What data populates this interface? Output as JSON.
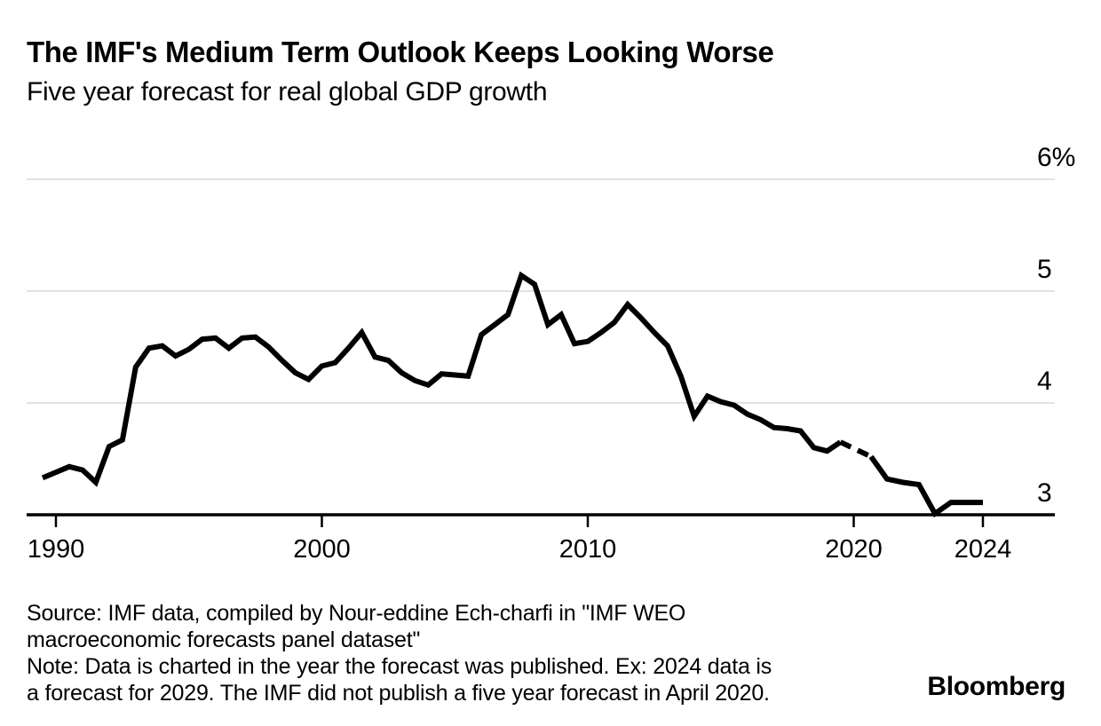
{
  "header": {
    "title": "The IMF's Medium Term Outlook Keeps Looking Worse",
    "subtitle": "Five year forecast for real global GDP growth"
  },
  "footer": {
    "source_lines": [
      "Source: IMF data, compiled by Nour-eddine Ech-charfi in \"IMF WEO",
      "macroeconomic forecasts panel dataset\""
    ],
    "note_lines": [
      "Note: Data is charted in the year the forecast was published. Ex: 2024 data is",
      "a forecast for 2029. The IMF did not publish a five year forecast in April 2020."
    ],
    "brand": "Bloomberg"
  },
  "colors": {
    "line": "#000000",
    "gridline": "#d9d9d9",
    "axis": "#000000",
    "background": "#ffffff",
    "text": "#000000"
  },
  "chart_data": {
    "type": "line",
    "title": "The IMF's Medium Term Outlook Keeps Looking Worse",
    "subtitle": "Five year forecast for real global GDP growth",
    "unit": "percent",
    "point_convention": "decimal years: .0 = April WEO publication, .5 = October WEO publication; value = five-year-ahead real global GDP growth forecast in %",
    "grid": "horizontal only",
    "legend": "none",
    "y_axis": {
      "side": "right",
      "baseline_value": 3,
      "top_value": 6.15,
      "ticks": [
        {
          "value": 6,
          "label": "6%"
        },
        {
          "value": 5,
          "label": "5"
        },
        {
          "value": 4,
          "label": "4"
        },
        {
          "value": 3,
          "label": "3"
        }
      ]
    },
    "x_axis": {
      "ticks": [
        {
          "value": 1990,
          "label": "1990"
        },
        {
          "value": 2000,
          "label": "2000"
        },
        {
          "value": 2010,
          "label": "2010"
        },
        {
          "value": 2020,
          "label": "2020"
        },
        {
          "value": 2024,
          "label": "2024"
        }
      ]
    },
    "series": [
      {
        "name": "Five year forecast for real global GDP growth",
        "color": "#000000",
        "points_solid_pre_gap": [
          [
            1989.5,
            3.33
          ],
          [
            1990.0,
            3.38
          ],
          [
            1990.5,
            3.43
          ],
          [
            1991.0,
            3.4
          ],
          [
            1991.5,
            3.29
          ],
          [
            1992.0,
            3.61
          ],
          [
            1992.5,
            3.67
          ],
          [
            1993.0,
            4.32
          ],
          [
            1993.5,
            4.49
          ],
          [
            1994.0,
            4.51
          ],
          [
            1994.5,
            4.42
          ],
          [
            1995.0,
            4.48
          ],
          [
            1995.5,
            4.57
          ],
          [
            1996.0,
            4.58
          ],
          [
            1996.5,
            4.49
          ],
          [
            1997.0,
            4.58
          ],
          [
            1997.5,
            4.59
          ],
          [
            1998.0,
            4.5
          ],
          [
            1998.5,
            4.38
          ],
          [
            1999.0,
            4.27
          ],
          [
            1999.5,
            4.21
          ],
          [
            2000.0,
            4.33
          ],
          [
            2000.5,
            4.36
          ],
          [
            2001.0,
            4.49
          ],
          [
            2001.5,
            4.63
          ],
          [
            2002.0,
            4.41
          ],
          [
            2002.5,
            4.38
          ],
          [
            2003.0,
            4.27
          ],
          [
            2003.5,
            4.2
          ],
          [
            2004.0,
            4.16
          ],
          [
            2004.5,
            4.26
          ],
          [
            2005.0,
            4.25
          ],
          [
            2005.5,
            4.24
          ],
          [
            2006.0,
            4.61
          ],
          [
            2006.5,
            4.7
          ],
          [
            2007.0,
            4.79
          ],
          [
            2007.5,
            5.14
          ],
          [
            2008.0,
            5.06
          ],
          [
            2008.5,
            4.7
          ],
          [
            2009.0,
            4.79
          ],
          [
            2009.5,
            4.53
          ],
          [
            2010.0,
            4.55
          ],
          [
            2010.5,
            4.63
          ],
          [
            2011.0,
            4.72
          ],
          [
            2011.5,
            4.88
          ],
          [
            2012.0,
            4.76
          ],
          [
            2012.5,
            4.63
          ],
          [
            2013.0,
            4.51
          ],
          [
            2013.5,
            4.24
          ],
          [
            2014.0,
            3.88
          ],
          [
            2014.5,
            4.06
          ],
          [
            2015.0,
            4.01
          ],
          [
            2015.5,
            3.98
          ],
          [
            2016.0,
            3.9
          ],
          [
            2016.5,
            3.85
          ],
          [
            2017.0,
            3.78
          ],
          [
            2017.5,
            3.77
          ],
          [
            2018.0,
            3.75
          ],
          [
            2018.5,
            3.6
          ],
          [
            2019.0,
            3.57
          ],
          [
            2019.5,
            3.65
          ]
        ],
        "gap_dashed": {
          "from": [
            2019.5,
            3.65
          ],
          "to": [
            2020.5,
            3.52
          ],
          "style": "dashed",
          "reason": "The IMF did not publish a five year forecast in April 2020"
        },
        "points_solid_post_gap": [
          [
            2020.5,
            3.52
          ],
          [
            2021.0,
            3.32
          ],
          [
            2021.5,
            3.29
          ],
          [
            2022.0,
            3.27
          ],
          [
            2022.5,
            3.01
          ],
          [
            2023.0,
            3.11
          ],
          [
            2023.5,
            3.11
          ],
          [
            2024.0,
            3.11
          ]
        ]
      }
    ]
  }
}
